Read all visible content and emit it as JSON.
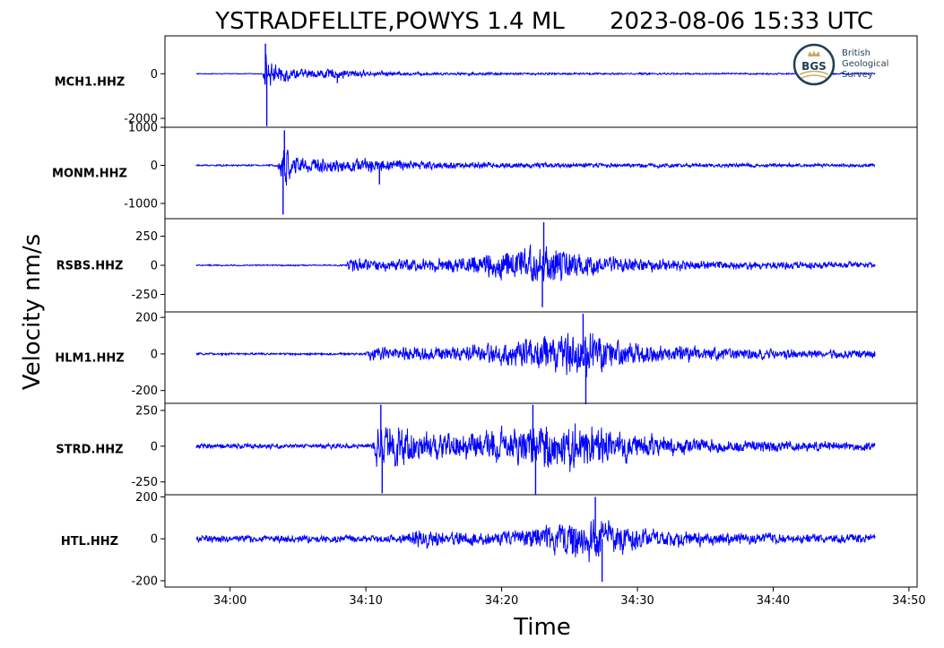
{
  "chart_data": {
    "type": "line",
    "title_left": "YSTRADFELLTE,POWYS 1.4 ML",
    "title_right": "2023-08-06 15:33 UTC",
    "ylabel": "Velocity nm/s",
    "xlabel": "Time",
    "x_ticks": [
      {
        "t": 0,
        "label": "34:00"
      },
      {
        "t": 10,
        "label": "34:10"
      },
      {
        "t": 20,
        "label": "34:20"
      },
      {
        "t": 30,
        "label": "34:30"
      },
      {
        "t": 40,
        "label": "34:40"
      },
      {
        "t": 50,
        "label": "34:50"
      }
    ],
    "xlim": [
      -4.8,
      50.6
    ],
    "t_start": -2.5,
    "t_end": 47.5,
    "line_color": "#0000ff",
    "series": [
      {
        "name": "MCH1.HHZ",
        "ylim": [
          -2400,
          1700
        ],
        "yticks": [
          {
            "v": 0,
            "label": "0"
          },
          {
            "v": -2000,
            "label": "-2000"
          }
        ],
        "noise": 25,
        "envelope": [
          [
            -2.5,
            25
          ],
          [
            2.4,
            25
          ],
          [
            2.6,
            1200
          ],
          [
            3.1,
            700
          ],
          [
            4.5,
            450
          ],
          [
            5.5,
            250
          ],
          [
            7,
            320
          ],
          [
            8.5,
            280
          ],
          [
            10,
            180
          ],
          [
            12,
            120
          ],
          [
            16,
            90
          ],
          [
            22,
            70
          ],
          [
            30,
            60
          ],
          [
            40,
            50
          ],
          [
            47.5,
            45
          ]
        ],
        "peaks": [
          [
            2.6,
            1350
          ],
          [
            2.7,
            -2350
          ],
          [
            7.9,
            -420
          ]
        ]
      },
      {
        "name": "MONM.HHZ",
        "ylim": [
          -1400,
          1000
        ],
        "yticks": [
          {
            "v": 1000,
            "label": "1000"
          },
          {
            "v": 0,
            "label": "0"
          },
          {
            "v": -1000,
            "label": "-1000"
          }
        ],
        "noise": 30,
        "envelope": [
          [
            -2.5,
            30
          ],
          [
            3.5,
            30
          ],
          [
            3.9,
            850
          ],
          [
            4.6,
            450
          ],
          [
            6,
            280
          ],
          [
            8,
            250
          ],
          [
            10,
            240
          ],
          [
            11,
            320
          ],
          [
            13,
            180
          ],
          [
            16,
            140
          ],
          [
            20,
            110
          ],
          [
            30,
            80
          ],
          [
            40,
            70
          ],
          [
            47.5,
            60
          ]
        ],
        "peaks": [
          [
            4.0,
            920
          ],
          [
            3.9,
            -1290
          ],
          [
            11.0,
            -500
          ]
        ]
      },
      {
        "name": "RSBS.HHZ",
        "ylim": [
          -400,
          400
        ],
        "yticks": [
          {
            "v": 250,
            "label": "250"
          },
          {
            "v": 0,
            "label": "0"
          },
          {
            "v": -250,
            "label": "-250"
          }
        ],
        "noise": 8,
        "envelope": [
          [
            -2.5,
            8
          ],
          [
            8.5,
            8
          ],
          [
            8.8,
            90
          ],
          [
            12,
            70
          ],
          [
            17,
            90
          ],
          [
            19,
            170
          ],
          [
            21,
            200
          ],
          [
            23,
            260
          ],
          [
            24.5,
            190
          ],
          [
            27,
            110
          ],
          [
            30,
            80
          ],
          [
            35,
            55
          ],
          [
            42,
            45
          ],
          [
            47.5,
            40
          ]
        ],
        "peaks": [
          [
            23.1,
            370
          ],
          [
            23.0,
            -360
          ]
        ]
      },
      {
        "name": "HLM1.HHZ",
        "ylim": [
          -270,
          230
        ],
        "yticks": [
          {
            "v": 200,
            "label": "200"
          },
          {
            "v": 0,
            "label": "0"
          },
          {
            "v": -200,
            "label": "-200"
          }
        ],
        "noise": 8,
        "envelope": [
          [
            -2.5,
            8
          ],
          [
            10.0,
            8
          ],
          [
            10.3,
            55
          ],
          [
            14,
            50
          ],
          [
            19,
            70
          ],
          [
            22,
            120
          ],
          [
            25,
            160
          ],
          [
            27,
            150
          ],
          [
            29,
            90
          ],
          [
            32,
            60
          ],
          [
            37,
            45
          ],
          [
            42,
            35
          ],
          [
            47.5,
            30
          ]
        ],
        "peaks": [
          [
            26.0,
            220
          ],
          [
            26.2,
            -275
          ]
        ]
      },
      {
        "name": "STRD.HHZ",
        "ylim": [
          -340,
          300
        ],
        "yticks": [
          {
            "v": 250,
            "label": "250"
          },
          {
            "v": 0,
            "label": "0"
          },
          {
            "v": -250,
            "label": "-250"
          }
        ],
        "noise": 25,
        "envelope": [
          [
            -2.5,
            25
          ],
          [
            10.5,
            25
          ],
          [
            10.8,
            180
          ],
          [
            12,
            230
          ],
          [
            14,
            140
          ],
          [
            18,
            140
          ],
          [
            21,
            170
          ],
          [
            23,
            230
          ],
          [
            25,
            230
          ],
          [
            27,
            190
          ],
          [
            30,
            120
          ],
          [
            35,
            70
          ],
          [
            40,
            55
          ],
          [
            47.5,
            45
          ]
        ],
        "peaks": [
          [
            11.1,
            290
          ],
          [
            11.2,
            -330
          ],
          [
            22.3,
            290
          ],
          [
            22.5,
            -340
          ]
        ]
      },
      {
        "name": "HTL.HHZ",
        "ylim": [
          -230,
          210
        ],
        "yticks": [
          {
            "v": 200,
            "label": "200"
          },
          {
            "v": 0,
            "label": "0"
          },
          {
            "v": -200,
            "label": "-200"
          }
        ],
        "noise": 25,
        "envelope": [
          [
            -2.5,
            25
          ],
          [
            13,
            28
          ],
          [
            13.6,
            60
          ],
          [
            16,
            50
          ],
          [
            19,
            45
          ],
          [
            22,
            70
          ],
          [
            25,
            120
          ],
          [
            26.5,
            150
          ],
          [
            28,
            120
          ],
          [
            31,
            60
          ],
          [
            36,
            40
          ],
          [
            42,
            35
          ],
          [
            47.5,
            30
          ]
        ],
        "peaks": [
          [
            26.9,
            200
          ],
          [
            27.4,
            -205
          ]
        ]
      }
    ]
  },
  "logo": {
    "monogram": "BGS",
    "line1": "British",
    "line2": "Geological",
    "line3": "Survey"
  }
}
